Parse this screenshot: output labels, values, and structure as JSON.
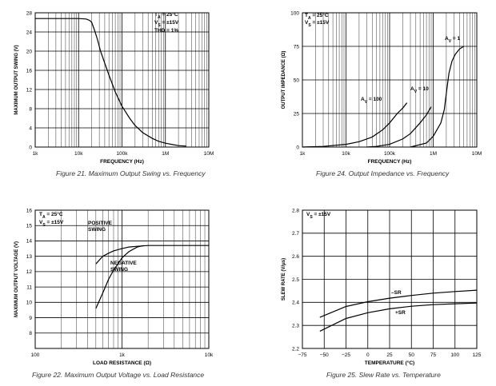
{
  "captions": [
    "Figure 21. Maximum Output Swing vs. Frequency",
    "Figure 24. Output Impedance vs. Frequency",
    "Figure 22. Maximum Output Voltage vs. Load Resistance",
    "Figure 25. Slew Rate vs. Temperature"
  ],
  "chart_data": [
    {
      "id": "fig21",
      "type": "line",
      "xlabel": "FREQUENCY (Hz)",
      "ylabel": "MAXIMUM OUTPUT SWING (V)",
      "xscale": "log",
      "xlim": [
        1000,
        10000000
      ],
      "ylim": [
        0,
        28
      ],
      "xticks": [
        1000,
        10000,
        100000,
        1000000,
        10000000
      ],
      "xticklabels": [
        "1k",
        "10k",
        "100k",
        "1M",
        "10M"
      ],
      "yticks": [
        0,
        4,
        8,
        12,
        16,
        20,
        24,
        28
      ],
      "yticklabels": [
        "0",
        "4",
        "8",
        "12",
        "16",
        "20",
        "24",
        "28"
      ],
      "annotations": [
        [
          "T",
          "A",
          " = 25°C"
        ],
        [
          "V",
          "S",
          " = ±15V"
        ],
        [
          "THD = 1%"
        ]
      ],
      "series": [
        {
          "x": [
            1000,
            10000,
            15000,
            18000,
            20000,
            23000,
            27000,
            32000,
            40000,
            50000,
            70000,
            100000,
            150000,
            200000,
            300000,
            500000,
            700000,
            1000000,
            1500000,
            2000000,
            3000000
          ],
          "y": [
            26.8,
            26.8,
            26.7,
            26.4,
            26,
            24.5,
            22.5,
            20,
            17.5,
            15,
            11.5,
            8.5,
            6,
            4.5,
            3,
            1.8,
            1.2,
            0.8,
            0.5,
            0.3,
            0.2
          ]
        }
      ]
    },
    {
      "id": "fig24",
      "type": "line",
      "xlabel": "FREQUENCY (Hz)",
      "ylabel": "OUTPUT IMPEDANCE (Ω)",
      "xscale": "log",
      "xlim": [
        1000,
        10000000
      ],
      "ylim": [
        0,
        100
      ],
      "xticks": [
        1000,
        10000,
        100000,
        1000000,
        10000000
      ],
      "xticklabels": [
        "1k",
        "10k",
        "100k",
        "1M",
        "10M"
      ],
      "yticks": [
        0,
        25,
        50,
        75,
        100
      ],
      "yticklabels": [
        "0",
        "25",
        "50",
        "75",
        "100"
      ],
      "annotations": [
        [
          "T",
          "A",
          " = 25°C"
        ],
        [
          "V",
          "S",
          " = ±15V"
        ]
      ],
      "series": [
        {
          "name": "A_V = 100",
          "label": [
            "A",
            "V",
            " = 100"
          ],
          "x": [
            1000,
            3000,
            10000,
            20000,
            40000,
            70000,
            100000,
            150000,
            200000,
            250000
          ],
          "y": [
            0,
            0.5,
            2,
            4,
            7.5,
            13,
            18,
            25,
            29,
            33
          ]
        },
        {
          "name": "A_V = 10",
          "label": [
            "A",
            "V",
            " = 10"
          ],
          "x": [
            30000,
            50000,
            100000,
            200000,
            300000,
            500000,
            700000,
            900000
          ],
          "y": [
            0,
            0.5,
            2,
            6,
            10,
            18,
            24,
            30
          ]
        },
        {
          "name": "A_V = 1",
          "label": [
            "A",
            "V",
            " = 1"
          ],
          "x": [
            300000,
            700000,
            1000000,
            1500000,
            1800000,
            2000000,
            2300000,
            2700000,
            3200000,
            4000000,
            5000000
          ],
          "y": [
            0,
            3,
            8,
            18,
            28,
            40,
            55,
            64,
            69,
            73,
            75
          ]
        }
      ]
    },
    {
      "id": "fig22",
      "type": "line",
      "xlabel": "LOAD RESISTANCE (Ω)",
      "ylabel": "MAXIMUM OUTPUT VOLTAGE (V)",
      "xscale": "log",
      "xlim": [
        100,
        10000
      ],
      "ylim": [
        7,
        16
      ],
      "xticks": [
        100,
        1000,
        10000
      ],
      "xticklabels": [
        "100",
        "1k",
        "10k"
      ],
      "yticks": [
        7,
        8,
        9,
        10,
        11,
        12,
        13,
        14,
        15,
        16
      ],
      "yticklabels": [
        "",
        "8",
        "9",
        "10",
        "11",
        "12",
        "13",
        "14",
        "15",
        "16"
      ],
      "annotations": [
        [
          "T",
          "A",
          " = 25°C"
        ],
        [
          "V",
          "S",
          " = ±15V"
        ]
      ],
      "series": [
        {
          "name": "POSITIVE SWING",
          "label_lines": [
            "POSITIVE",
            "SWING"
          ],
          "x": [
            500,
            600,
            700,
            800,
            1000,
            1200,
            1500,
            2000,
            3000,
            5000,
            10000
          ],
          "y": [
            12.5,
            13,
            13.2,
            13.35,
            13.5,
            13.6,
            13.65,
            13.7,
            13.7,
            13.7,
            13.7
          ]
        },
        {
          "name": "NEGATIVE SWING",
          "label_lines": [
            "NEGATIVE",
            "SWING"
          ],
          "x": [
            500,
            600,
            700,
            800,
            1000,
            1200,
            1500,
            1800
          ],
          "y": [
            9.6,
            10.6,
            11.5,
            12.1,
            12.9,
            13.3,
            13.6,
            13.7
          ]
        }
      ]
    },
    {
      "id": "fig25",
      "type": "line",
      "xlabel": "TEMPERATURE (°C)",
      "ylabel": "SLEW RATE (V/μs)",
      "xscale": "linear",
      "xlim": [
        -75,
        125
      ],
      "ylim": [
        2.2,
        2.8
      ],
      "xticks": [
        -75,
        -50,
        -25,
        0,
        25,
        50,
        75,
        100,
        125
      ],
      "xticklabels": [
        "−75",
        "−50",
        "−25",
        "0",
        "25",
        "50",
        "75",
        "100",
        "125"
      ],
      "yticks": [
        2.2,
        2.3,
        2.4,
        2.5,
        2.6,
        2.7,
        2.8
      ],
      "yticklabels": [
        "2.2",
        "2.3",
        "2.4",
        "2.5",
        "2.6",
        "2.7",
        "2.8"
      ],
      "annotations": [
        [
          "V",
          "S",
          " = ±15V"
        ]
      ],
      "series": [
        {
          "name": "–SR",
          "x": [
            -55,
            -25,
            0,
            25,
            50,
            75,
            100,
            125
          ],
          "y": [
            2.335,
            2.382,
            2.403,
            2.418,
            2.43,
            2.44,
            2.447,
            2.453
          ]
        },
        {
          "name": "+SR",
          "x": [
            -55,
            -25,
            0,
            25,
            50,
            75,
            100,
            125
          ],
          "y": [
            2.275,
            2.33,
            2.355,
            2.372,
            2.383,
            2.39,
            2.394,
            2.397
          ]
        }
      ]
    }
  ]
}
